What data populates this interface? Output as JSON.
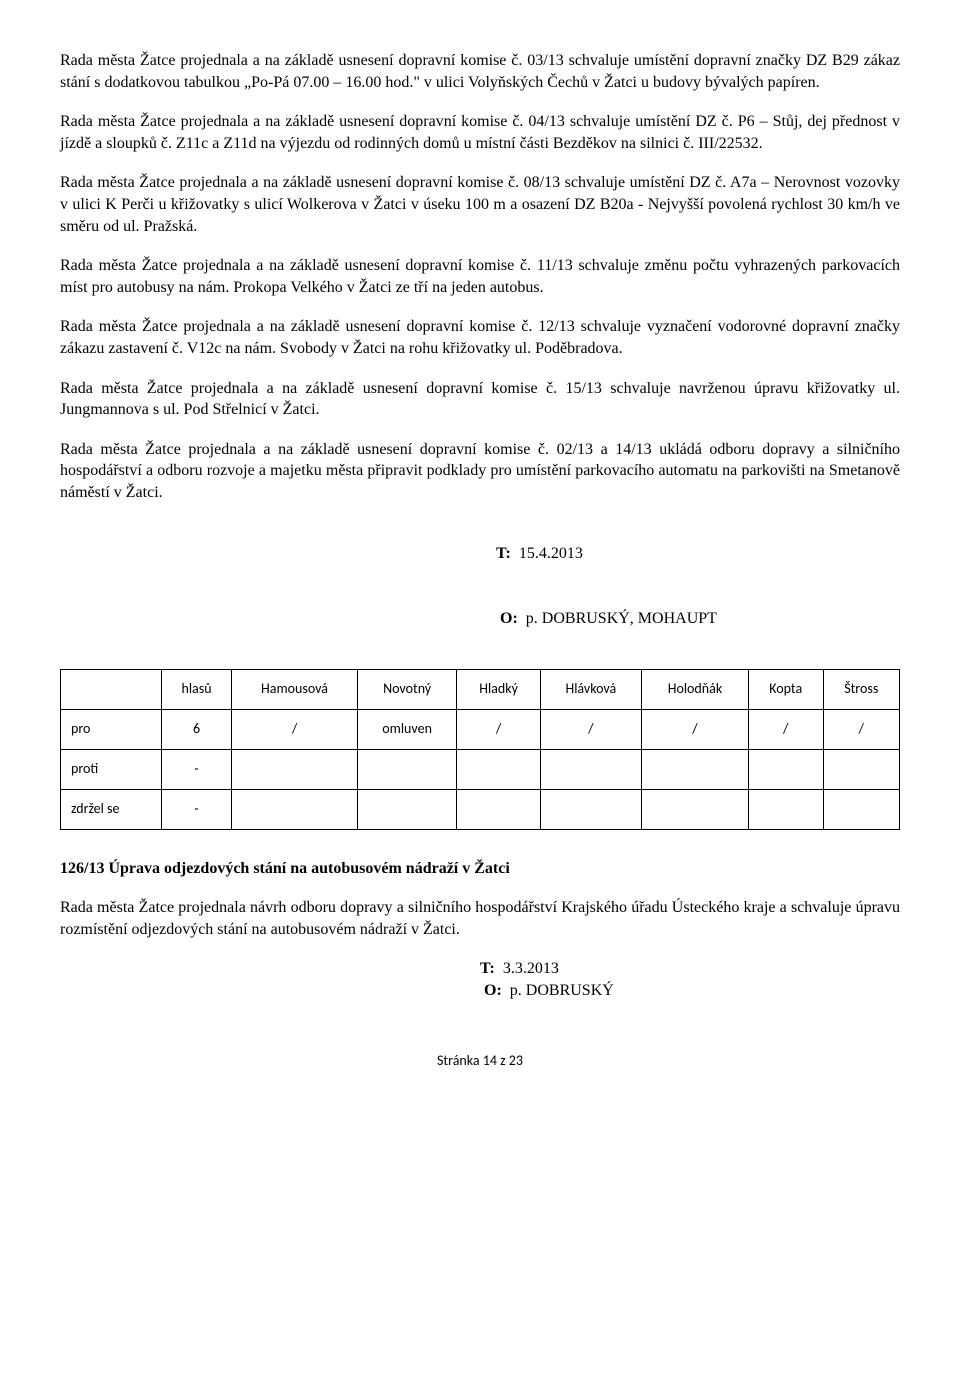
{
  "paragraphs": {
    "p1": "Rada města Žatce projednala a na základě usnesení dopravní komise č. 03/13 schvaluje umístění dopravní značky DZ B29 zákaz stání s dodatkovou tabulkou „Po-Pá 07.00 – 16.00 hod.\" v ulici Volyňských Čechů v Žatci u budovy bývalých papíren.",
    "p2": "Rada města Žatce projednala a na základě usnesení dopravní komise č. 04/13 schvaluje umístění DZ č. P6 – Stůj, dej přednost v jízdě a sloupků č. Z11c a Z11d na výjezdu od rodinných domů u místní části Bezděkov na silnici č. III/22532.",
    "p3": "Rada města Žatce projednala a na základě usnesení dopravní komise č. 08/13 schvaluje umístění DZ č. A7a – Nerovnost vozovky v ulici K Perči u křižovatky s ulicí Wolkerova v  Žatci v úseku 100 m a osazení DZ B20a  - Nejvyšší povolená rychlost 30 km/h ve směru od ul. Pražská.",
    "p4": "Rada města Žatce projednala a na základě usnesení dopravní komise č. 11/13 schvaluje změnu počtu vyhrazených parkovacích míst pro autobusy na nám. Prokopa Velkého v Žatci ze tří na jeden autobus.",
    "p5": "Rada města Žatce projednala a na základě usnesení dopravní komise č. 12/13 schvaluje vyznačení vodorovné dopravní značky zákazu zastavení č. V12c na nám. Svobody v Žatci na rohu křižovatky ul. Poděbradova.",
    "p6": "Rada města Žatce projednala a na základě usnesení dopravní komise č. 15/13 schvaluje  navrženou úpravu křižovatky ul. Jungmannova s ul. Pod Střelnicí v Žatci.",
    "p7": "Rada města Žatce projednala a na základě usnesení dopravní komise č. 02/13 a 14/13 ukládá odboru dopravy a silničního hospodářství a odboru rozvoje a majetku města připravit podklady pro umístění parkovacího automatu na parkovišti na Smetanově náměstí v Žatci."
  },
  "meta1": {
    "t_label": "T:",
    "t_value": "15.4.2013",
    "o_label": "O:",
    "o_value": "p. DOBRUSKÝ, MOHAUPT"
  },
  "table": {
    "headers": [
      "",
      "hlasů",
      "Hamousová",
      "Novotný",
      "Hladký",
      "Hlávková",
      "Holodňák",
      "Kopta",
      "Štross"
    ],
    "rows": [
      {
        "label": "pro",
        "cells": [
          "6",
          "/",
          "omluven",
          "/",
          "/",
          "/",
          "/",
          "/"
        ]
      },
      {
        "label": "proti",
        "cells": [
          "-",
          "",
          "",
          "",
          "",
          "",
          "",
          ""
        ]
      },
      {
        "label": "zdržel se",
        "cells": [
          "-",
          "",
          "",
          "",
          "",
          "",
          "",
          ""
        ]
      }
    ]
  },
  "section": {
    "title": "126/13  Úprava odjezdových stání na autobusovém nádraží v Žatci",
    "body": "Rada města Žatce projednala návrh odboru dopravy a silničního hospodářství Krajského úřadu Ústeckého kraje a schvaluje úpravu rozmístění odjezdových stání na autobusovém nádraží v Žatci."
  },
  "meta2": {
    "t_label": "T:",
    "t_value": "3.3.2013",
    "o_label": "O:",
    "o_value": "p. DOBRUSKÝ"
  },
  "footer": "Stránka 14 z 23"
}
